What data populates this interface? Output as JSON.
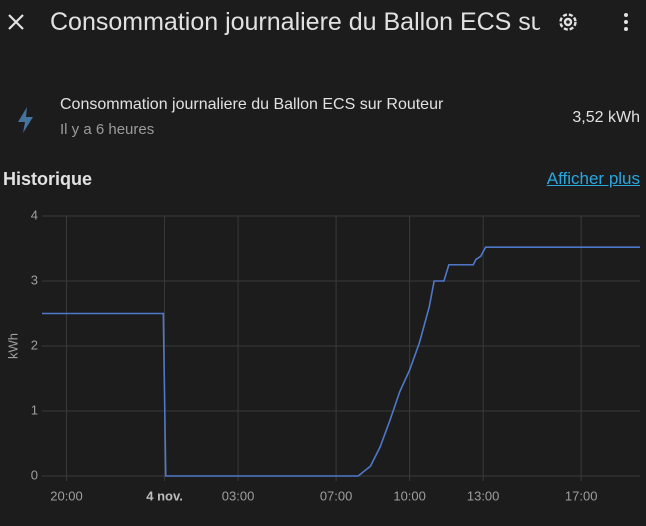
{
  "header": {
    "title": "Consommation journaliere du Ballon ECS sur Routeur"
  },
  "entity": {
    "name": "Consommation journaliere du Ballon ECS sur Routeur",
    "last_changed": "Il y a 6 heures",
    "state": "3,52 kWh"
  },
  "section": {
    "title": "Historique",
    "link": "Afficher plus"
  },
  "chart_data": {
    "type": "line",
    "y_label": "kWh",
    "color": "#4f78c9",
    "x": [
      -5,
      -0.05,
      0.05,
      7.9,
      8.4,
      8.8,
      9.2,
      9.6,
      10.0,
      10.4,
      10.8,
      11.0,
      11.4,
      11.6,
      12.6,
      12.7,
      12.9,
      13.0,
      13.1,
      19.4
    ],
    "values": [
      2.5,
      2.5,
      0,
      0,
      0.15,
      0.45,
      0.86,
      1.3,
      1.63,
      2.05,
      2.6,
      3.0,
      3.0,
      3.25,
      3.25,
      3.33,
      3.38,
      3.45,
      3.52,
      3.52
    ],
    "xlim": [
      -5,
      19.4
    ],
    "ylim": [
      0,
      4
    ],
    "xticks": [
      {
        "value": -4,
        "label": "20:00"
      },
      {
        "value": 0,
        "label": "4 nov."
      },
      {
        "value": 3,
        "label": "03:00"
      },
      {
        "value": 7,
        "label": "07:00"
      },
      {
        "value": 10,
        "label": "10:00"
      },
      {
        "value": 13,
        "label": "13:00"
      },
      {
        "value": 17,
        "label": "17:00"
      }
    ],
    "yticks": [
      0,
      1,
      2,
      3,
      4
    ],
    "grid": true
  }
}
